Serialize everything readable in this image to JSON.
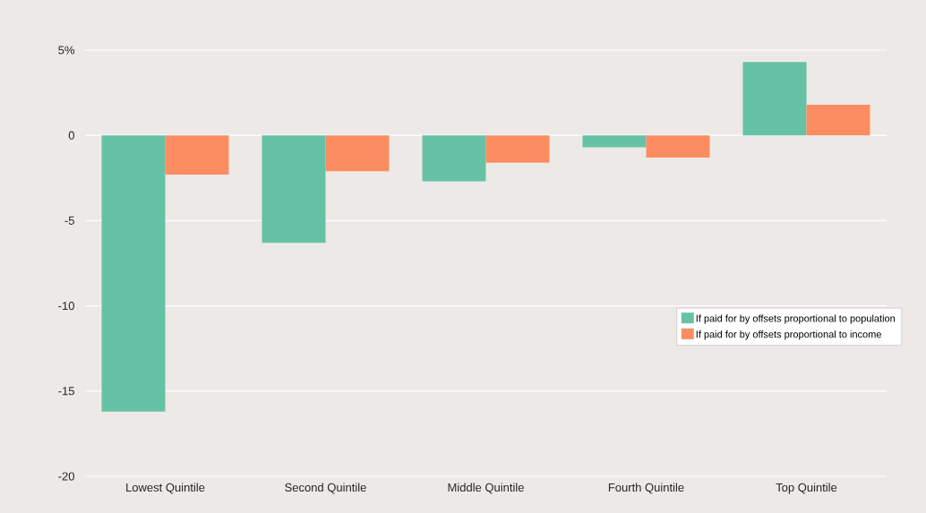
{
  "chart_data": {
    "type": "bar",
    "categories": [
      "Lowest Quintile",
      "Second Quintile",
      "Middle Quintile",
      "Fourth Quintile",
      "Top Quintile"
    ],
    "series": [
      {
        "name": "If paid for by offsets proportional to population",
        "color": "#66c2a5",
        "values": [
          -16.2,
          -6.3,
          -2.7,
          -0.7,
          4.3
        ]
      },
      {
        "name": "If paid for by offsets proportional to income",
        "color": "#fc8d62",
        "values": [
          -2.3,
          -2.1,
          -1.6,
          -1.3,
          1.8
        ]
      }
    ],
    "ylim": [
      -20,
      5
    ],
    "yticks": [
      {
        "value": 5,
        "label": "5%"
      },
      0,
      -5,
      -10,
      -15,
      -20
    ],
    "grid": "y",
    "legend": "right"
  }
}
